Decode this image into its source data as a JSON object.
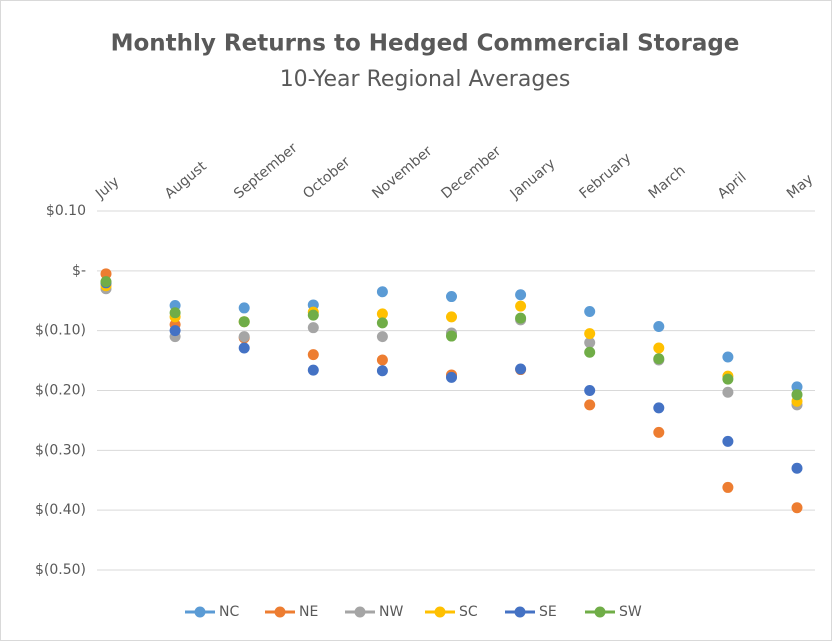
{
  "chart_data": {
    "type": "line",
    "title": "Monthly Returns to Hedged Commercial Storage",
    "subtitle": "10-Year Regional Averages",
    "categories": [
      "July",
      "August",
      "September",
      "October",
      "November",
      "December",
      "January",
      "February",
      "March",
      "April",
      "May"
    ],
    "series": [
      {
        "name": "NC",
        "color": "#5b9bd5",
        "values": [
          -0.02,
          -0.058,
          -0.062,
          -0.057,
          -0.035,
          -0.043,
          -0.04,
          -0.068,
          -0.093,
          -0.144,
          -0.194
        ]
      },
      {
        "name": "NE",
        "color": "#ed7d31",
        "values": [
          -0.005,
          -0.09,
          -0.112,
          -0.14,
          -0.149,
          -0.174,
          -0.165,
          -0.224,
          -0.27,
          -0.362,
          -0.396
        ]
      },
      {
        "name": "NW",
        "color": "#a5a5a5",
        "values": [
          -0.03,
          -0.11,
          -0.11,
          -0.095,
          -0.11,
          -0.104,
          -0.082,
          -0.12,
          -0.149,
          -0.203,
          -0.224
        ]
      },
      {
        "name": "SC",
        "color": "#ffc000",
        "values": [
          -0.025,
          -0.077,
          -0.085,
          -0.069,
          -0.072,
          -0.077,
          -0.059,
          -0.105,
          -0.129,
          -0.176,
          -0.218
        ]
      },
      {
        "name": "SE",
        "color": "#4472c4",
        "values": [
          -0.02,
          -0.1,
          -0.129,
          -0.166,
          -0.167,
          -0.178,
          -0.164,
          -0.2,
          -0.229,
          -0.285,
          -0.33
        ]
      },
      {
        "name": "SW",
        "color": "#70ad47",
        "values": [
          -0.018,
          -0.07,
          -0.085,
          -0.074,
          -0.087,
          -0.109,
          -0.079,
          -0.136,
          -0.147,
          -0.181,
          -0.207
        ]
      }
    ],
    "ylim": [
      -0.5,
      0.1
    ],
    "yticks": [
      {
        "value": 0.1,
        "label": "$0.10"
      },
      {
        "value": 0,
        "label": "$-"
      },
      {
        "value": -0.1,
        "label": "$(0.10)"
      },
      {
        "value": -0.2,
        "label": "$(0.20)"
      },
      {
        "value": -0.3,
        "label": "$(0.30)"
      },
      {
        "value": -0.4,
        "label": "$(0.40)"
      },
      {
        "value": -0.5,
        "label": "$(0.50)"
      }
    ],
    "grid": true,
    "legend": "bottom"
  }
}
